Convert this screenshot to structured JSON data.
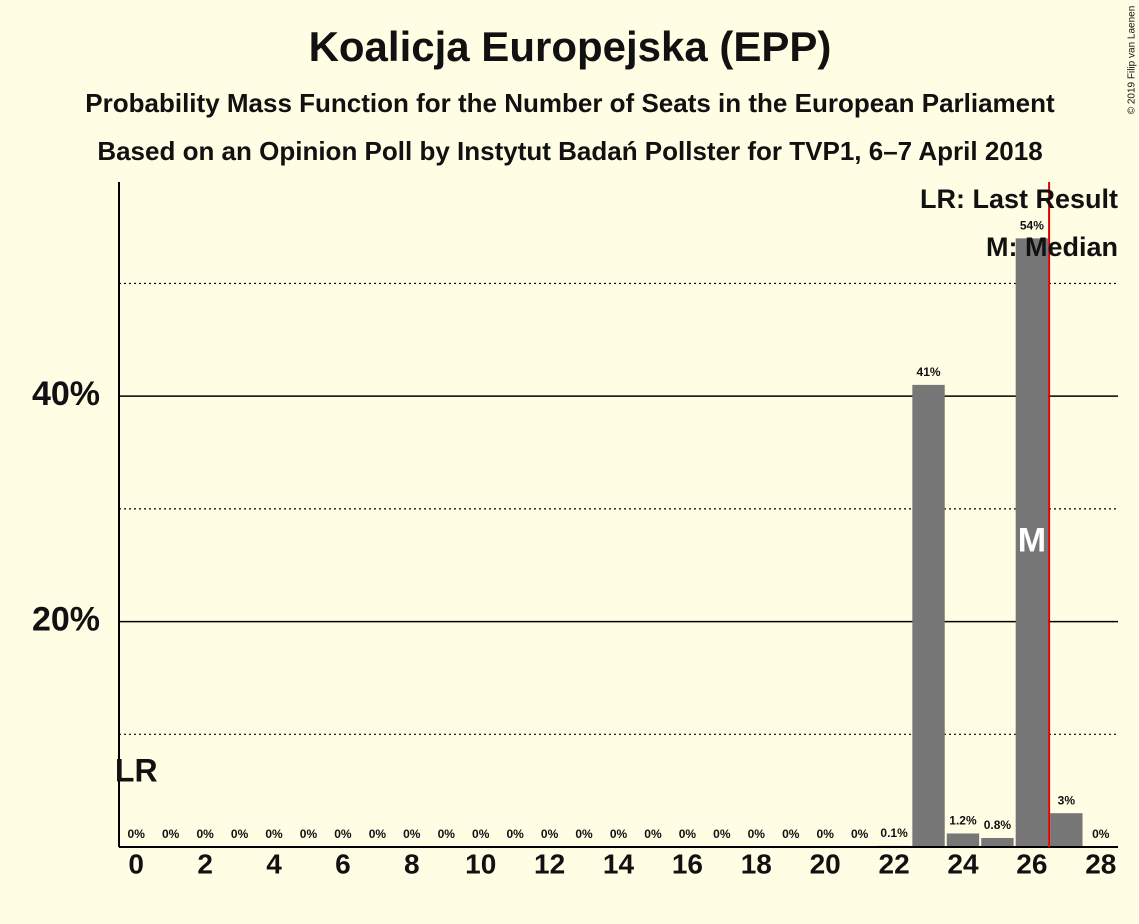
{
  "chart_data": {
    "type": "bar",
    "title": "Koalicja Europejska (EPP)",
    "subtitle": "Probability Mass Function for the Number of Seats in the European Parliament",
    "subtitle2": "Based on an Opinion Poll by Instytut Badań Pollster for TVP1, 6–7 April 2018",
    "copyright": "© 2019 Filip van Laenen",
    "x": [
      0,
      1,
      2,
      3,
      4,
      5,
      6,
      7,
      8,
      9,
      10,
      11,
      12,
      13,
      14,
      15,
      16,
      17,
      18,
      19,
      20,
      21,
      22,
      23,
      24,
      25,
      26,
      27,
      28
    ],
    "values": [
      0,
      0,
      0,
      0,
      0,
      0,
      0,
      0,
      0,
      0,
      0,
      0,
      0,
      0,
      0,
      0,
      0,
      0,
      0,
      0,
      0,
      0,
      0.1,
      41,
      1.2,
      0.8,
      54,
      3,
      0
    ],
    "value_labels": [
      "0%",
      "0%",
      "0%",
      "0%",
      "0%",
      "0%",
      "0%",
      "0%",
      "0%",
      "0%",
      "0%",
      "0%",
      "0%",
      "0%",
      "0%",
      "0%",
      "0%",
      "0%",
      "0%",
      "0%",
      "0%",
      "0%",
      "0.1%",
      "41%",
      "1.2%",
      "0.8%",
      "54%",
      "3%",
      "0%"
    ],
    "color": "#777777",
    "xlim": [
      -0.5,
      28.5
    ],
    "xticks": [
      0,
      2,
      4,
      6,
      8,
      10,
      12,
      14,
      16,
      18,
      20,
      22,
      24,
      26,
      28
    ],
    "ylim": [
      0,
      59
    ],
    "yticks": [
      {
        "value": 20,
        "label": "20%"
      },
      {
        "value": 40,
        "label": "40%"
      }
    ],
    "minor_yticks": [
      10,
      30,
      50
    ],
    "grid": true,
    "last_result": 0,
    "last_result_label": "LR",
    "median": 26,
    "median_label": "M",
    "threshold": {
      "value": 26.5,
      "color": "#e00000"
    },
    "legend": [
      "LR: Last Result",
      "M: Median"
    ]
  }
}
